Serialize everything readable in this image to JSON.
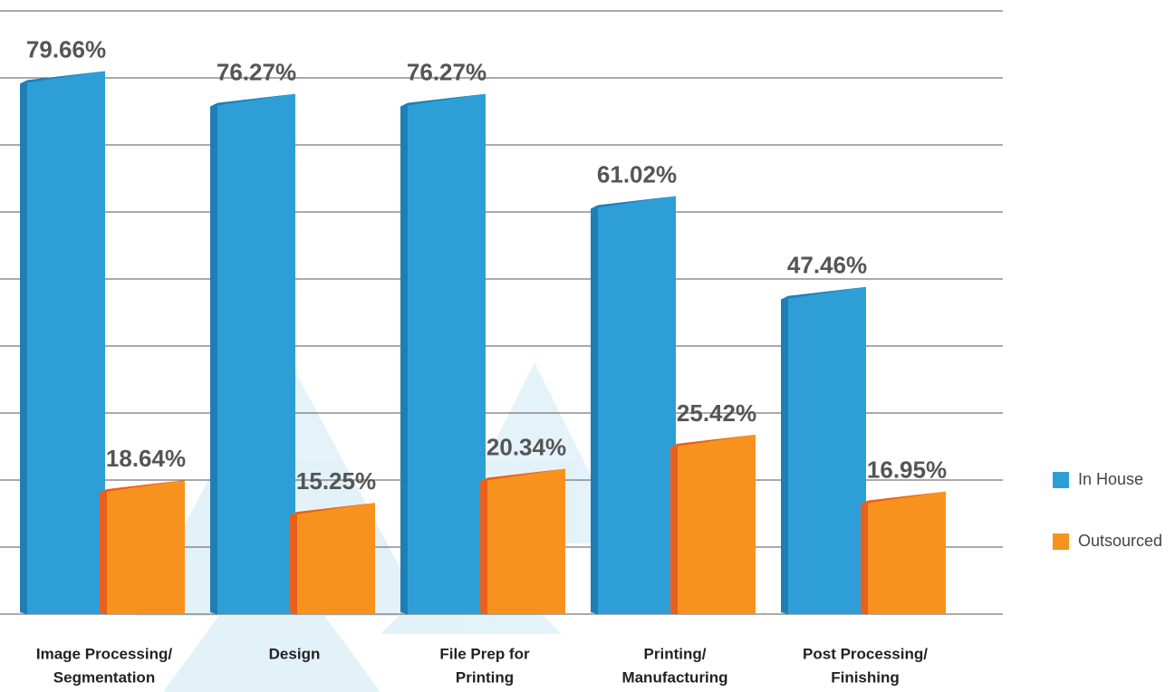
{
  "chart_data": {
    "type": "bar",
    "categories": [
      [
        "Image Processing/",
        "Segmentation"
      ],
      [
        "Design"
      ],
      [
        "File Prep for",
        "Printing"
      ],
      [
        "Printing/",
        "Manufacturing"
      ],
      [
        "Post Processing/",
        "Finishing"
      ]
    ],
    "series": [
      {
        "name": "In House",
        "color": "#2e9fd6",
        "values": [
          79.66,
          76.27,
          76.27,
          61.02,
          47.46
        ],
        "value_labels": [
          "79.66%",
          "76.27%",
          "76.27%",
          "61.02%",
          "47.46%"
        ]
      },
      {
        "name": "Outsourced",
        "color": "#f7921e",
        "values": [
          18.64,
          15.25,
          20.34,
          25.42,
          16.95
        ],
        "value_labels": [
          "18.64%",
          "15.25%",
          "20.34%",
          "25.42%",
          "16.95%"
        ]
      }
    ],
    "ylim": [
      0,
      90
    ],
    "yticks": [
      0,
      10,
      20,
      30,
      40,
      50,
      60,
      70,
      80,
      90
    ],
    "grid": true,
    "legend": "right"
  }
}
